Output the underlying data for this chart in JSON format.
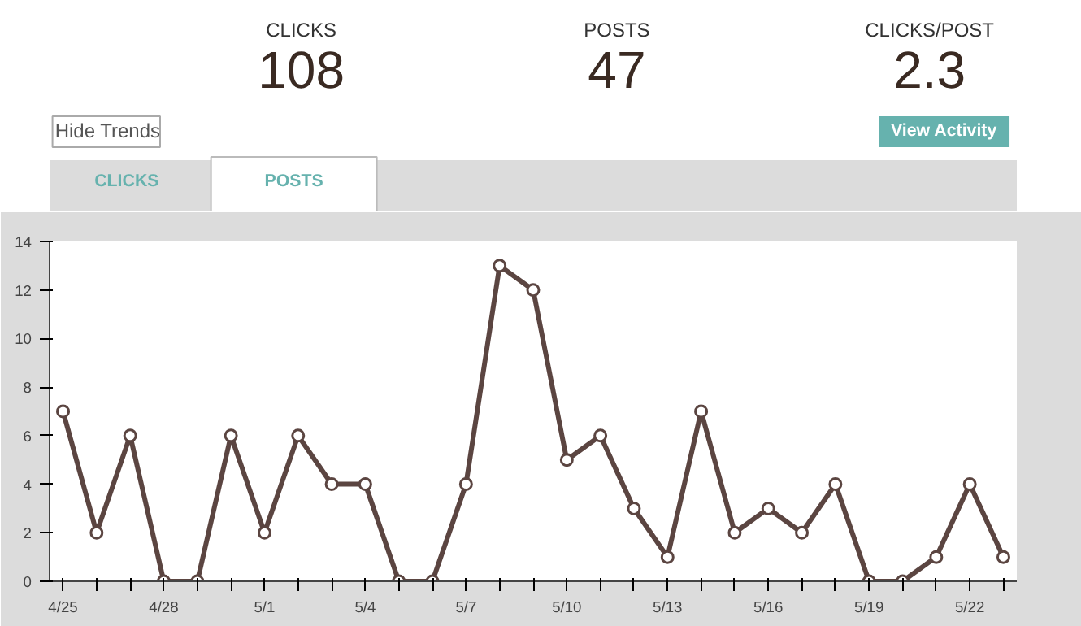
{
  "chart_data": {
    "type": "line",
    "categories": [
      "4/25",
      null,
      null,
      "4/28",
      null,
      null,
      "5/1",
      null,
      null,
      "5/4",
      null,
      null,
      "5/7",
      null,
      null,
      "5/10",
      null,
      null,
      "5/13",
      null,
      null,
      "5/16",
      null,
      null,
      "5/19",
      null,
      null,
      "5/22",
      null
    ],
    "series": [
      {
        "color": "#5b4541",
        "values": [
          7,
          2,
          6,
          0,
          0,
          6,
          2,
          6,
          4,
          4,
          0,
          0,
          4,
          13,
          12,
          5,
          6,
          3,
          1,
          7,
          2,
          3,
          2,
          4,
          0,
          0,
          1,
          4,
          1
        ]
      }
    ],
    "ylim": [
      0,
      14
    ],
    "yticks": [
      0,
      2,
      4,
      6,
      8,
      10,
      12,
      14
    ],
    "grid": false,
    "marker": "circle",
    "line_style": "solid",
    "annotations": [
      "CLICKS",
      "108",
      "POSTS",
      "47",
      "CLICKS/POST",
      "2.3",
      "Hide Trends",
      "View Activity",
      "CLICKS",
      "POSTS"
    ]
  }
}
